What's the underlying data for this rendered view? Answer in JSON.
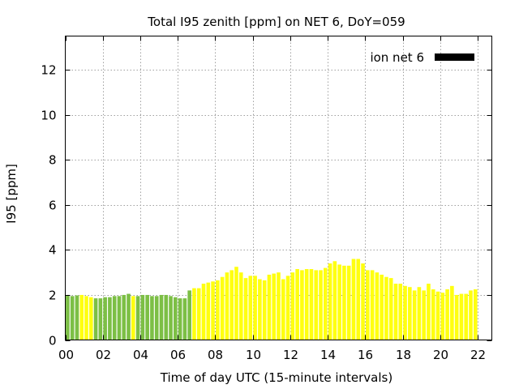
{
  "chart_data": {
    "type": "bar",
    "title": "Total I95 zenith [ppm] on NET 6, DoY=059",
    "xlabel": "Time of day UTC (15-minute intervals)",
    "ylabel": "I95 [ppm]",
    "ylim": [
      0,
      13.5
    ],
    "yticks": [
      0,
      2,
      4,
      6,
      8,
      10,
      12
    ],
    "xlim": [
      0,
      22.75
    ],
    "xticks": [
      "00",
      "02",
      "04",
      "06",
      "08",
      "10",
      "12",
      "14",
      "16",
      "18",
      "20",
      "22"
    ],
    "grid": true,
    "legend": {
      "label": "ion net 6",
      "color": "#000000",
      "placement": "top-right"
    },
    "colors": {
      "green": "#7cbf45",
      "yellow": "#ffff10"
    },
    "bar_colors": "gggyyyggggggggyggggggggggggyyyyyyyyyyyyyyyyyyyyyyyyyyyyyyyyyyyyyyyyyyyyyyyyyyyyyyyyyyyyyyy",
    "values": [
      2.0,
      1.95,
      1.98,
      2.0,
      1.95,
      1.9,
      1.85,
      1.85,
      1.9,
      1.9,
      1.95,
      1.95,
      2.0,
      2.05,
      1.95,
      1.95,
      2.0,
      2.0,
      1.95,
      1.95,
      2.0,
      2.0,
      1.95,
      1.9,
      1.85,
      1.85,
      2.2,
      2.3,
      2.3,
      2.5,
      2.55,
      2.6,
      2.65,
      2.8,
      3.0,
      3.1,
      3.25,
      3.0,
      2.75,
      2.85,
      2.85,
      2.7,
      2.65,
      2.9,
      2.95,
      3.0,
      2.7,
      2.85,
      3.0,
      3.15,
      3.1,
      3.15,
      3.15,
      3.1,
      3.1,
      3.2,
      3.4,
      3.5,
      3.35,
      3.3,
      3.3,
      3.6,
      3.6,
      3.4,
      3.1,
      3.1,
      3.0,
      2.9,
      2.8,
      2.75,
      2.5,
      2.5,
      2.4,
      2.35,
      2.2,
      2.35,
      2.2,
      2.5,
      2.25,
      2.15,
      2.1,
      2.25,
      2.4,
      2.0,
      2.05,
      2.05,
      2.2,
      2.25
    ]
  }
}
